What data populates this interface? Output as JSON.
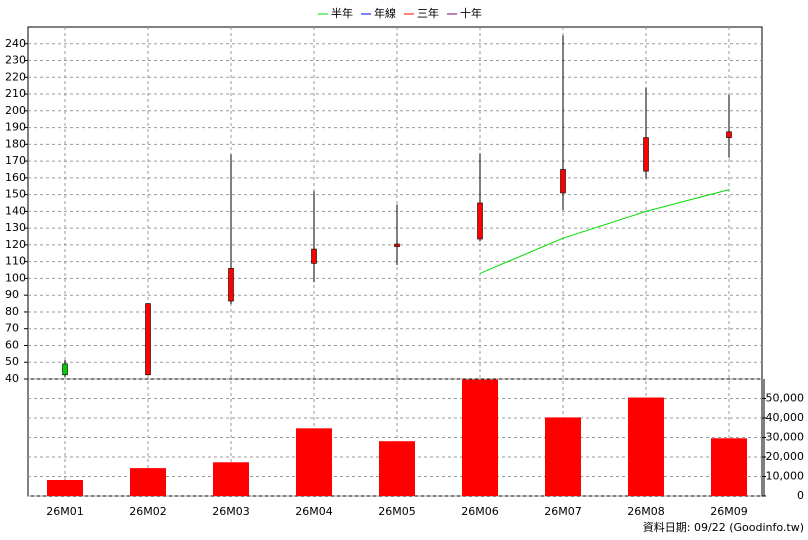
{
  "chart_data": [
    {
      "type": "candlestick",
      "categories": [
        "26M01",
        "26M02",
        "26M03",
        "26M04",
        "26M05",
        "26M06",
        "26M07",
        "26M08",
        "26M09"
      ],
      "open": [
        49,
        42.5,
        86.5,
        109,
        119,
        123.5,
        151,
        164,
        184
      ],
      "high": [
        51.3,
        85.2,
        174,
        152,
        144,
        174.5,
        245,
        213.8,
        209.6
      ],
      "low": [
        41.2,
        42.4,
        84.6,
        97.7,
        108,
        122,
        140.6,
        159.6,
        172
      ],
      "close": [
        42.5,
        85,
        106,
        117.5,
        120.5,
        145,
        165,
        184,
        187.5
      ],
      "up_color": "#ff0000",
      "down_color": "#00cc00",
      "series": [
        {
          "name": "半年",
          "color": "#00dd00",
          "values": [
            null,
            null,
            null,
            null,
            null,
            103,
            124,
            140,
            153
          ]
        },
        {
          "name": "年線",
          "color": "#0000ff",
          "values": [
            null,
            null,
            null,
            null,
            null,
            null,
            null,
            null,
            null
          ]
        },
        {
          "name": "三年",
          "color": "#ff0000",
          "values": [
            null,
            null,
            null,
            null,
            null,
            null,
            null,
            null,
            null
          ]
        },
        {
          "name": "十年",
          "color": "#800080",
          "values": [
            null,
            null,
            null,
            null,
            null,
            null,
            null,
            null,
            null
          ]
        }
      ],
      "ylim": [
        40,
        250
      ],
      "yticks": [
        40,
        50,
        60,
        70,
        80,
        90,
        100,
        110,
        120,
        130,
        140,
        150,
        160,
        170,
        180,
        190,
        200,
        210,
        220,
        230,
        240
      ],
      "grid": true
    },
    {
      "type": "bar",
      "values": [
        8200,
        14300,
        17300,
        34700,
        28100,
        59700,
        40300,
        50500,
        29600
      ],
      "color": "#ff0000",
      "ylim": [
        0,
        60000
      ],
      "yticks": [
        0,
        {
          "value": 10000,
          "label": "10,000"
        },
        {
          "value": 20000,
          "label": "20,000"
        },
        {
          "value": 30000,
          "label": "30,000"
        },
        {
          "value": 40000,
          "label": "40,000"
        },
        {
          "value": 50000,
          "label": "50,000"
        }
      ],
      "grid": true
    }
  ],
  "footer": "資料日期: 09/22  (Goodinfo.tw)"
}
